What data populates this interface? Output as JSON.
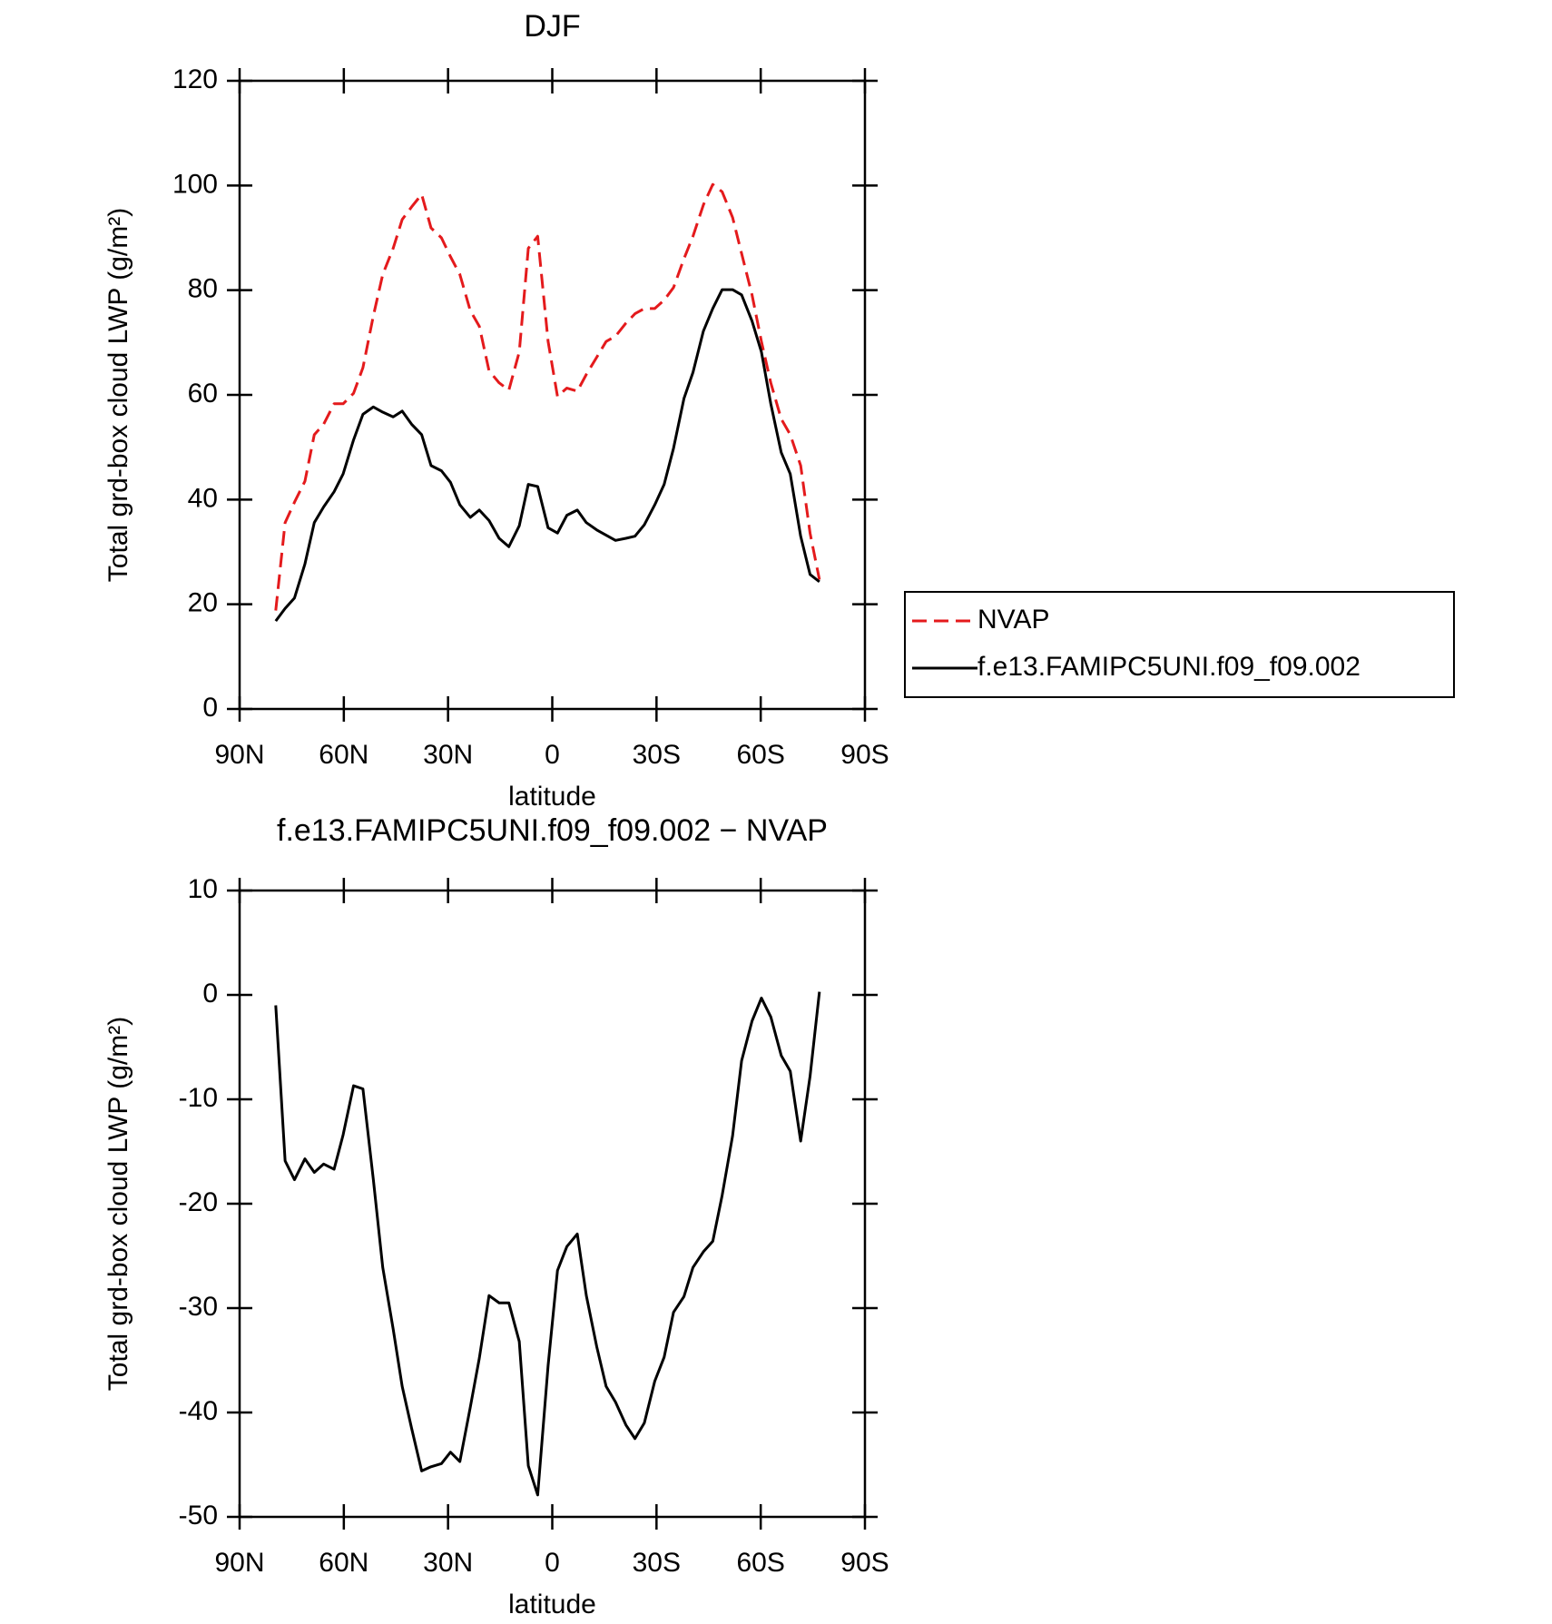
{
  "chart_data": [
    {
      "type": "line",
      "title": "DJF",
      "xlabel": "latitude",
      "ylabel": "Total grd-box cloud LWP (g/m²)",
      "x": [
        79.6,
        76.9,
        74.2,
        71.2,
        68.5,
        65.8,
        62.8,
        60.2,
        57.2,
        54.5,
        51.5,
        48.8,
        45.8,
        43.2,
        40.5,
        37.6,
        34.9,
        31.9,
        29.3,
        26.6,
        23.6,
        21.0,
        18.2,
        15.3,
        12.5,
        9.5,
        6.9,
        4.2,
        1.2,
        -1.5,
        -4.2,
        -7.2,
        -9.8,
        -12.8,
        -15.5,
        -18.2,
        -21.2,
        -23.8,
        -26.5,
        -29.5,
        -32.2,
        -34.9,
        -37.9,
        -40.5,
        -43.5,
        -46.2,
        -48.9,
        -51.9,
        -54.5,
        -57.5,
        -60.2,
        -62.9,
        -65.9,
        -68.5,
        -71.5,
        -74.2,
        -76.9
      ],
      "series": [
        {
          "name": "NVAP",
          "color": "#e41a1c",
          "dashed": true,
          "values": [
            18.8,
            35.6,
            39.5,
            43.5,
            52.4,
            54.4,
            58.3,
            58.3,
            60.3,
            65.2,
            75.1,
            83,
            88,
            93.5,
            95.9,
            98.3,
            91.9,
            90,
            86.4,
            83,
            76.1,
            73.1,
            64.6,
            62.3,
            60.9,
            68.2,
            88,
            90.3,
            70.2,
            59.7,
            61.3,
            60.7,
            63.9,
            67.2,
            70.2,
            71.2,
            73.7,
            75.5,
            76.5,
            76.5,
            78.1,
            80.5,
            86,
            90.3,
            96.3,
            100.2,
            98.8,
            93.9,
            87,
            79.1,
            70.2,
            62.3,
            55.4,
            52.4,
            46.5,
            33.6,
            24.7
          ]
        },
        {
          "name": "f.e13.FAMIPC5UNI.f09_f09.002",
          "color": "#000000",
          "dashed": false,
          "values": [
            16.8,
            19.2,
            21.2,
            27.7,
            35.6,
            38.6,
            41.5,
            44.9,
            51.4,
            56.3,
            57.7,
            56.7,
            55.8,
            56.9,
            54.4,
            52.4,
            46.5,
            45.5,
            43.3,
            39,
            36.6,
            38,
            36,
            32.6,
            31,
            35,
            42.9,
            42.5,
            34.6,
            33.6,
            37,
            38,
            35.6,
            34.2,
            33.2,
            32.2,
            32.6,
            33,
            35.2,
            39,
            42.9,
            49.8,
            59.3,
            64.3,
            72.2,
            76.5,
            80.1,
            80.1,
            79.1,
            74.1,
            68.2,
            58.3,
            49,
            44.9,
            33,
            25.7,
            24.3
          ]
        }
      ],
      "xlim": [
        90,
        -90
      ],
      "xticks": [
        {
          "value": 90,
          "label": "90N"
        },
        {
          "value": 60,
          "label": "60N"
        },
        {
          "value": 30,
          "label": "30N"
        },
        0,
        {
          "value": -30,
          "label": "30S"
        },
        {
          "value": -60,
          "label": "60S"
        },
        {
          "value": -90,
          "label": "90S"
        }
      ],
      "ylim": [
        0,
        120
      ],
      "yticks": [
        0,
        20,
        40,
        60,
        80,
        100,
        120
      ],
      "legend": "right"
    },
    {
      "type": "line",
      "title": "f.e13.FAMIPC5UNI.f09_f09.002 − NVAP",
      "xlabel": "latitude",
      "ylabel": "Total grd-box cloud LWP (g/m²)",
      "x": [
        79.6,
        76.9,
        74.2,
        71.2,
        68.5,
        65.8,
        62.8,
        60.2,
        57.2,
        54.5,
        51.5,
        48.8,
        45.8,
        43.2,
        40.5,
        37.6,
        34.9,
        31.9,
        29.3,
        26.6,
        23.6,
        21.0,
        18.2,
        15.3,
        12.5,
        9.5,
        6.9,
        4.2,
        1.2,
        -1.5,
        -4.2,
        -7.2,
        -9.8,
        -12.8,
        -15.5,
        -18.2,
        -21.2,
        -23.8,
        -26.5,
        -29.5,
        -32.2,
        -34.9,
        -37.9,
        -40.5,
        -43.5,
        -46.2,
        -48.9,
        -51.9,
        -54.5,
        -57.5,
        -60.2,
        -62.9,
        -65.9,
        -68.5,
        -71.5,
        -74.2,
        -76.9
      ],
      "series": [
        {
          "color": "#000000",
          "dashed": false,
          "values": [
            -1,
            -15.9,
            -17.7,
            -15.7,
            -17,
            -16.2,
            -16.7,
            -13.4,
            -8.7,
            -9,
            -17.7,
            -26.1,
            -32,
            -37.5,
            -41.5,
            -45.6,
            -45.2,
            -44.9,
            -43.8,
            -44.7,
            -39.5,
            -34.8,
            -28.8,
            -29.5,
            -29.5,
            -33.2,
            -45.1,
            -47.9,
            -35.5,
            -26.4,
            -24.1,
            -22.9,
            -28.8,
            -33.7,
            -37.5,
            -39,
            -41.2,
            -42.5,
            -41,
            -37,
            -34.7,
            -30.4,
            -28.9,
            -26.1,
            -24.6,
            -23.6,
            -19.2,
            -13.5,
            -6.3,
            -2.5,
            -0.3,
            -2.1,
            -5.8,
            -7.3,
            -14,
            -7.8,
            0.3
          ]
        }
      ],
      "xlim": [
        90,
        -90
      ],
      "xticks": [
        {
          "value": 90,
          "label": "90N"
        },
        {
          "value": 60,
          "label": "60N"
        },
        {
          "value": 30,
          "label": "30N"
        },
        0,
        {
          "value": -30,
          "label": "30S"
        },
        {
          "value": -60,
          "label": "60S"
        },
        {
          "value": -90,
          "label": "90S"
        }
      ],
      "ylim": [
        -50,
        10
      ],
      "yticks": [
        -50,
        -40,
        -30,
        -20,
        -10,
        0,
        10
      ]
    }
  ]
}
